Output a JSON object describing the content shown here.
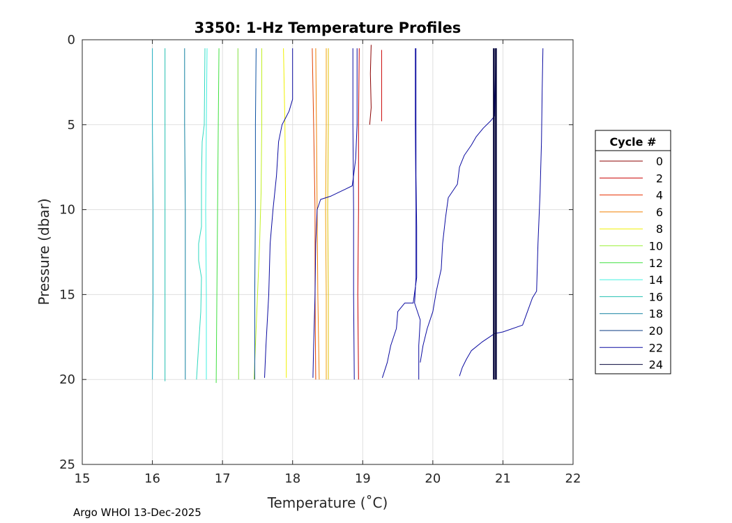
{
  "chart_data": {
    "type": "line",
    "title": "3350: 1-Hz Temperature Profiles",
    "xlabel": "Temperature (˚C)",
    "ylabel": "Pressure (dbar)",
    "xlim": [
      15,
      22
    ],
    "ylim": [
      0,
      25
    ],
    "y_reversed": true,
    "grid": true,
    "xticks": [
      "15",
      "16",
      "17",
      "18",
      "19",
      "20",
      "21",
      "22"
    ],
    "yticks": [
      "0",
      "5",
      "10",
      "15",
      "20",
      "25"
    ],
    "legend_title": "Cycle #",
    "legend_position": "outside-right",
    "legend": [
      {
        "label": "0",
        "color": "#8b0000"
      },
      {
        "label": "2",
        "color": "#c80000"
      },
      {
        "label": "4",
        "color": "#e83000"
      },
      {
        "label": "6",
        "color": "#f08000"
      },
      {
        "label": "8",
        "color": "#f0f000"
      },
      {
        "label": "10",
        "color": "#a0f040"
      },
      {
        "label": "12",
        "color": "#40e040"
      },
      {
        "label": "14",
        "color": "#40f0e0"
      },
      {
        "label": "16",
        "color": "#20c0b0"
      },
      {
        "label": "18",
        "color": "#1080a0"
      },
      {
        "label": "20",
        "color": "#0a3a80"
      },
      {
        "label": "22",
        "color": "#0a0aa0"
      },
      {
        "label": "24",
        "color": "#05053a"
      }
    ],
    "series": [
      {
        "name": "c1",
        "color": "#8b0000",
        "points": [
          [
            19.12,
            0.3
          ],
          [
            19.11,
            2
          ],
          [
            19.12,
            4
          ],
          [
            19.1,
            5
          ]
        ]
      },
      {
        "name": "c2",
        "color": "#c80000",
        "points": [
          [
            19.27,
            0.6
          ],
          [
            19.27,
            3
          ],
          [
            19.27,
            4.8
          ]
        ]
      },
      {
        "name": "c3",
        "color": "#c80000",
        "points": [
          [
            18.95,
            0.5
          ],
          [
            18.94,
            5
          ],
          [
            18.94,
            10
          ],
          [
            18.93,
            15
          ],
          [
            18.94,
            20
          ]
        ]
      },
      {
        "name": "c4",
        "color": "#e04000",
        "points": [
          [
            18.28,
            0.5
          ],
          [
            18.3,
            5
          ],
          [
            18.32,
            10
          ],
          [
            18.32,
            15
          ],
          [
            18.33,
            20
          ]
        ]
      },
      {
        "name": "c5",
        "color": "#f08000",
        "points": [
          [
            18.33,
            0.5
          ],
          [
            18.34,
            5
          ],
          [
            18.35,
            10
          ],
          [
            18.36,
            15
          ],
          [
            18.38,
            20
          ]
        ]
      },
      {
        "name": "c6",
        "color": "#f0a000",
        "points": [
          [
            18.48,
            0.5
          ],
          [
            18.48,
            5
          ],
          [
            18.47,
            10
          ],
          [
            18.48,
            15
          ],
          [
            18.48,
            20
          ]
        ]
      },
      {
        "name": "c7",
        "color": "#e0c000",
        "points": [
          [
            18.51,
            0.5
          ],
          [
            18.51,
            5
          ],
          [
            18.5,
            10
          ],
          [
            18.51,
            15
          ],
          [
            18.51,
            20
          ]
        ]
      },
      {
        "name": "c8",
        "color": "#f0f000",
        "points": [
          [
            17.87,
            0.5
          ],
          [
            17.89,
            5
          ],
          [
            17.9,
            10
          ],
          [
            17.91,
            15
          ],
          [
            17.91,
            19.9
          ]
        ]
      },
      {
        "name": "c9",
        "color": "#c0f020",
        "points": [
          [
            17.56,
            0.5
          ],
          [
            17.56,
            5
          ],
          [
            17.55,
            9
          ],
          [
            17.53,
            12
          ],
          [
            17.5,
            15
          ],
          [
            17.48,
            17
          ],
          [
            17.45,
            20
          ]
        ]
      },
      {
        "name": "c10",
        "color": "#80e040",
        "points": [
          [
            17.22,
            0.5
          ],
          [
            17.22,
            5
          ],
          [
            17.23,
            10
          ],
          [
            17.23,
            15
          ],
          [
            17.23,
            20
          ]
        ]
      },
      {
        "name": "c11",
        "color": "#40e040",
        "points": [
          [
            16.95,
            0.5
          ],
          [
            16.94,
            5
          ],
          [
            16.93,
            10
          ],
          [
            16.92,
            15
          ],
          [
            16.91,
            20.2
          ]
        ]
      },
      {
        "name": "c12",
        "color": "#40f0e0",
        "points": [
          [
            16.78,
            0.5
          ],
          [
            16.77,
            5
          ],
          [
            16.76,
            10
          ],
          [
            16.77,
            15
          ],
          [
            16.77,
            20
          ]
        ]
      },
      {
        "name": "c13",
        "color": "#30d8c0",
        "points": [
          [
            16.75,
            0.5
          ],
          [
            16.74,
            5
          ],
          [
            16.71,
            6
          ],
          [
            16.7,
            8
          ],
          [
            16.7,
            11
          ],
          [
            16.66,
            12
          ],
          [
            16.66,
            13
          ],
          [
            16.7,
            14
          ],
          [
            16.69,
            16
          ],
          [
            16.66,
            18
          ],
          [
            16.63,
            20
          ]
        ]
      },
      {
        "name": "c14",
        "color": "#20c0b0",
        "points": [
          [
            16.18,
            0.5
          ],
          [
            16.18,
            5
          ],
          [
            16.18,
            10
          ],
          [
            16.18,
            15
          ],
          [
            16.18,
            20.1
          ]
        ]
      },
      {
        "name": "c15",
        "color": "#20b0c0",
        "points": [
          [
            16.0,
            0.5
          ],
          [
            16.0,
            5
          ],
          [
            16.01,
            10
          ],
          [
            16.01,
            15
          ],
          [
            16.0,
            20
          ]
        ]
      },
      {
        "name": "c16",
        "color": "#1080a0",
        "points": [
          [
            16.46,
            0.5
          ],
          [
            16.46,
            5
          ],
          [
            16.47,
            10
          ],
          [
            16.47,
            15
          ],
          [
            16.47,
            20
          ]
        ]
      },
      {
        "name": "c17",
        "color": "#0a50a0",
        "points": [
          [
            17.48,
            0.5
          ],
          [
            17.47,
            5
          ],
          [
            17.47,
            10
          ],
          [
            17.46,
            15
          ],
          [
            17.46,
            20
          ]
        ]
      },
      {
        "name": "c18",
        "color": "#0a0aa0",
        "points": [
          [
            18.0,
            0.5
          ],
          [
            18.0,
            3.5
          ],
          [
            17.95,
            4.2
          ],
          [
            17.9,
            4.6
          ],
          [
            17.85,
            5.0
          ],
          [
            17.8,
            6
          ],
          [
            17.77,
            8
          ],
          [
            17.72,
            10
          ],
          [
            17.68,
            12
          ],
          [
            17.66,
            15
          ],
          [
            17.62,
            18
          ],
          [
            17.6,
            19.9
          ]
        ]
      },
      {
        "name": "c19",
        "color": "#0a0aa0",
        "points": [
          [
            18.92,
            0.5
          ],
          [
            18.92,
            5
          ],
          [
            18.9,
            7
          ],
          [
            18.87,
            8
          ],
          [
            18.85,
            8.6
          ],
          [
            18.75,
            8.8
          ],
          [
            18.65,
            9.0
          ],
          [
            18.55,
            9.2
          ],
          [
            18.4,
            9.4
          ],
          [
            18.35,
            10
          ],
          [
            18.33,
            12
          ],
          [
            18.32,
            15
          ],
          [
            18.3,
            18
          ],
          [
            18.29,
            19.9
          ]
        ]
      },
      {
        "name": "c20",
        "color": "#0a0aa0",
        "points": [
          [
            18.86,
            0.5
          ],
          [
            18.86,
            5
          ],
          [
            18.87,
            10
          ],
          [
            18.87,
            15
          ],
          [
            18.88,
            20
          ]
        ]
      },
      {
        "name": "c21",
        "color": "#0a0aa0",
        "points": [
          [
            19.76,
            0.5
          ],
          [
            19.76,
            5
          ],
          [
            19.76,
            8
          ],
          [
            19.77,
            11
          ],
          [
            19.77,
            14
          ],
          [
            19.72,
            15.5
          ],
          [
            19.6,
            15.5
          ],
          [
            19.5,
            16
          ],
          [
            19.48,
            17
          ],
          [
            19.4,
            18
          ],
          [
            19.35,
            19
          ],
          [
            19.28,
            19.9
          ]
        ]
      },
      {
        "name": "c22",
        "color": "#0a0aa0",
        "points": [
          [
            19.75,
            0.5
          ],
          [
            19.75,
            5
          ],
          [
            19.76,
            10
          ],
          [
            19.76,
            14
          ],
          [
            19.74,
            15.5
          ],
          [
            19.82,
            16.5
          ],
          [
            19.8,
            18
          ],
          [
            19.8,
            20
          ]
        ]
      },
      {
        "name": "c23",
        "color": "#0a0aa0",
        "points": [
          [
            20.9,
            0.5
          ],
          [
            20.88,
            4.5
          ],
          [
            20.82,
            4.8
          ],
          [
            20.72,
            5.2
          ],
          [
            20.62,
            5.7
          ],
          [
            20.55,
            6.2
          ],
          [
            20.45,
            6.8
          ],
          [
            20.38,
            7.5
          ],
          [
            20.35,
            8.5
          ],
          [
            20.22,
            9.3
          ],
          [
            20.18,
            10.5
          ],
          [
            20.14,
            12
          ],
          [
            20.12,
            13.5
          ],
          [
            20.05,
            14.8
          ],
          [
            20.0,
            16
          ],
          [
            19.92,
            17
          ],
          [
            19.86,
            18
          ],
          [
            19.82,
            19
          ]
        ]
      },
      {
        "name": "c24",
        "color": "#0a0aa0",
        "points": [
          [
            21.57,
            0.5
          ],
          [
            21.56,
            3
          ],
          [
            21.55,
            6
          ],
          [
            21.53,
            9
          ],
          [
            21.5,
            12
          ],
          [
            21.48,
            14.8
          ],
          [
            21.42,
            15.2
          ],
          [
            21.35,
            16
          ],
          [
            21.28,
            16.8
          ],
          [
            21.0,
            17.2
          ],
          [
            20.88,
            17.3
          ],
          [
            20.7,
            17.8
          ],
          [
            20.55,
            18.3
          ],
          [
            20.48,
            18.8
          ],
          [
            20.42,
            19.3
          ],
          [
            20.38,
            19.8
          ]
        ]
      },
      {
        "name": "c25",
        "color": "#05053a",
        "width": 2.5,
        "points": [
          [
            20.87,
            0.5
          ],
          [
            20.87,
            5
          ],
          [
            20.87,
            10
          ],
          [
            20.87,
            15
          ],
          [
            20.87,
            20
          ]
        ]
      },
      {
        "name": "c26",
        "color": "#05053a",
        "width": 2.5,
        "points": [
          [
            20.9,
            0.5
          ],
          [
            20.9,
            5
          ],
          [
            20.9,
            10
          ],
          [
            20.9,
            15
          ],
          [
            20.9,
            20
          ]
        ]
      }
    ]
  },
  "footer": {
    "credit": "Argo WHOI 13-Dec-2025"
  }
}
